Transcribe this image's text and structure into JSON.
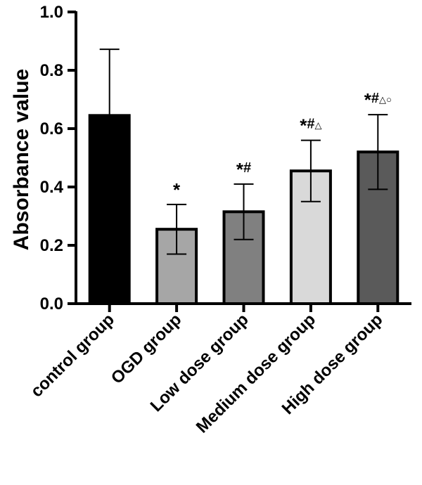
{
  "chart_data": {
    "type": "bar",
    "title": "",
    "xlabel": "",
    "ylabel": "Absorbance value",
    "ylim": [
      0,
      1.0
    ],
    "yticks": [
      "0.0",
      "0.2",
      "0.4",
      "0.6",
      "0.8",
      "1.0"
    ],
    "grid": false,
    "categories": [
      "control group",
      "OGD group",
      "Low dose group",
      "Medium dose group",
      "High dose group"
    ],
    "values": [
      0.645,
      0.255,
      0.315,
      0.455,
      0.52
    ],
    "errors": [
      0.227,
      0.085,
      0.095,
      0.105,
      0.128
    ],
    "annotations": [
      "",
      "*",
      "*#",
      "*#△",
      "*#△○"
    ],
    "colors": [
      "#000000",
      "#a6a6a6",
      "#808080",
      "#d9d9d9",
      "#5a5a5a"
    ]
  }
}
